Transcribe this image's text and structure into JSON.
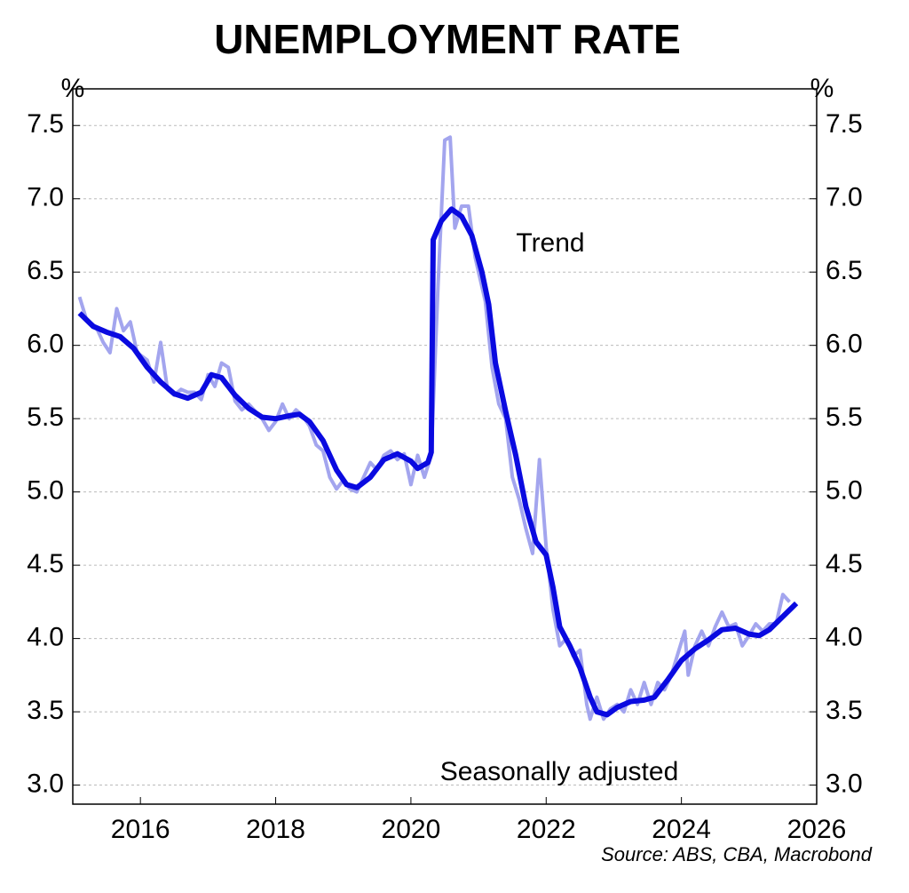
{
  "chart_data": {
    "type": "line",
    "title": "UNEMPLOYMENT RATE",
    "y_unit": "%",
    "source": "Source: ABS, CBA, Macrobond",
    "xlim": [
      2015,
      2026
    ],
    "xticks": [
      2016,
      2018,
      2020,
      2022,
      2024,
      2026
    ],
    "ylim": [
      2.87,
      7.75
    ],
    "yticks": [
      {
        "value": 3,
        "label": "3.0"
      },
      3.5,
      {
        "value": 4,
        "label": "4.0"
      },
      4.5,
      {
        "value": 5,
        "label": "5.0"
      },
      5.5,
      {
        "value": 6,
        "label": "6.0"
      },
      6.5,
      {
        "value": 7,
        "label": "7.0"
      },
      7.5
    ],
    "grid": true,
    "series": [
      {
        "name": "Seasonally adjusted",
        "color": "#a3a5ee",
        "x": [
          2015.1,
          2015.2,
          2015.35,
          2015.45,
          2015.55,
          2015.65,
          2015.75,
          2015.85,
          2015.95,
          2016.1,
          2016.2,
          2016.3,
          2016.4,
          2016.5,
          2016.6,
          2016.7,
          2016.8,
          2016.9,
          2017.0,
          2017.1,
          2017.2,
          2017.3,
          2017.4,
          2017.5,
          2017.6,
          2017.8,
          2017.9,
          2018.0,
          2018.1,
          2018.2,
          2018.3,
          2018.4,
          2018.5,
          2018.6,
          2018.7,
          2018.8,
          2018.9,
          2019.0,
          2019.1,
          2019.2,
          2019.3,
          2019.4,
          2019.5,
          2019.6,
          2019.7,
          2019.8,
          2019.9,
          2020.0,
          2020.1,
          2020.2,
          2020.3,
          2020.4,
          2020.5,
          2020.58,
          2020.65,
          2020.75,
          2020.85,
          2020.95,
          2021.1,
          2021.2,
          2021.3,
          2021.4,
          2021.5,
          2021.6,
          2021.7,
          2021.8,
          2021.9,
          2022.0,
          2022.1,
          2022.2,
          2022.3,
          2022.4,
          2022.5,
          2022.6,
          2022.65,
          2022.75,
          2022.85,
          2022.95,
          2023.05,
          2023.15,
          2023.25,
          2023.35,
          2023.45,
          2023.55,
          2023.65,
          2023.75,
          2023.85,
          2023.95,
          2024.05,
          2024.1,
          2024.2,
          2024.3,
          2024.4,
          2024.5,
          2024.6,
          2024.7,
          2024.8,
          2024.9,
          2025.0,
          2025.1,
          2025.2,
          2025.3,
          2025.4,
          2025.5,
          2025.6
        ],
        "values": [
          6.33,
          6.18,
          6.12,
          6.02,
          5.95,
          6.25,
          6.1,
          6.16,
          5.95,
          5.9,
          5.75,
          6.02,
          5.7,
          5.66,
          5.7,
          5.68,
          5.68,
          5.63,
          5.8,
          5.72,
          5.88,
          5.85,
          5.62,
          5.56,
          5.6,
          5.5,
          5.42,
          5.48,
          5.6,
          5.5,
          5.56,
          5.52,
          5.45,
          5.32,
          5.28,
          5.1,
          5.02,
          5.08,
          5.02,
          5.0,
          5.1,
          5.2,
          5.15,
          5.25,
          5.28,
          5.22,
          5.26,
          5.05,
          5.25,
          5.1,
          5.25,
          6.4,
          7.4,
          7.42,
          6.8,
          6.95,
          6.95,
          6.6,
          6.3,
          5.85,
          5.6,
          5.5,
          5.1,
          4.95,
          4.75,
          4.58,
          5.22,
          4.62,
          4.2,
          3.95,
          4.0,
          3.88,
          3.92,
          3.55,
          3.45,
          3.6,
          3.45,
          3.52,
          3.55,
          3.5,
          3.65,
          3.55,
          3.7,
          3.55,
          3.7,
          3.65,
          3.75,
          3.9,
          4.05,
          3.75,
          3.95,
          4.05,
          3.95,
          4.08,
          4.18,
          4.08,
          4.1,
          3.95,
          4.02,
          4.1,
          4.05,
          4.1,
          4.1,
          4.3,
          4.25
        ]
      },
      {
        "name": "Trend",
        "color": "#0a0ae0",
        "x": [
          2015.1,
          2015.3,
          2015.5,
          2015.7,
          2015.9,
          2016.1,
          2016.3,
          2016.5,
          2016.7,
          2016.9,
          2017.05,
          2017.2,
          2017.4,
          2017.6,
          2017.8,
          2018.0,
          2018.2,
          2018.35,
          2018.5,
          2018.7,
          2018.9,
          2019.05,
          2019.2,
          2019.4,
          2019.6,
          2019.8,
          2020.0,
          2020.1,
          2020.25,
          2020.3,
          2020.33,
          2020.45,
          2020.6,
          2020.75,
          2020.9,
          2021.05,
          2021.15,
          2021.25,
          2021.4,
          2021.55,
          2021.7,
          2021.85,
          2022.0,
          2022.1,
          2022.2,
          2022.35,
          2022.5,
          2022.65,
          2022.75,
          2022.9,
          2023.05,
          2023.25,
          2023.45,
          2023.6,
          2023.8,
          2024.0,
          2024.2,
          2024.4,
          2024.6,
          2024.8,
          2025.0,
          2025.15,
          2025.3,
          2025.5,
          2025.7
        ],
        "values": [
          6.22,
          6.13,
          6.09,
          6.06,
          5.98,
          5.85,
          5.75,
          5.67,
          5.64,
          5.68,
          5.8,
          5.78,
          5.66,
          5.57,
          5.51,
          5.5,
          5.52,
          5.53,
          5.48,
          5.35,
          5.15,
          5.05,
          5.03,
          5.1,
          5.22,
          5.26,
          5.21,
          5.16,
          5.2,
          5.27,
          6.72,
          6.85,
          6.93,
          6.88,
          6.75,
          6.5,
          6.28,
          5.88,
          5.55,
          5.25,
          4.9,
          4.66,
          4.57,
          4.35,
          4.08,
          3.95,
          3.8,
          3.6,
          3.5,
          3.48,
          3.53,
          3.57,
          3.58,
          3.6,
          3.72,
          3.85,
          3.93,
          3.99,
          4.06,
          4.07,
          4.03,
          4.02,
          4.06,
          4.15,
          4.24
        ]
      }
    ]
  }
}
